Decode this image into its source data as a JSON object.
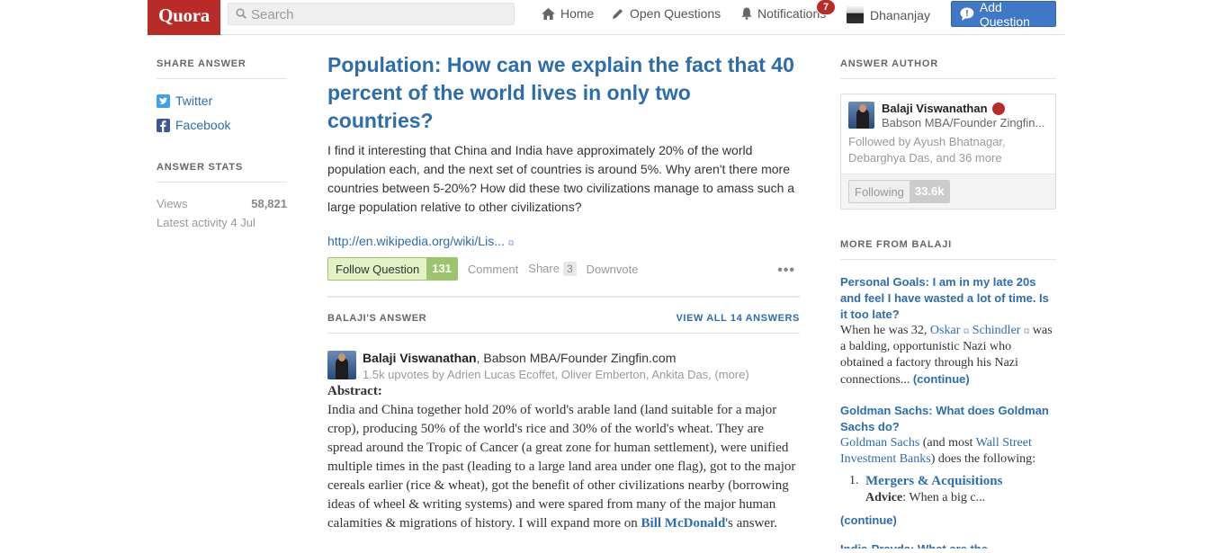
{
  "header": {
    "logo": "Quora",
    "search_placeholder": "Search",
    "nav_home": "Home",
    "nav_open_questions": "Open Questions",
    "nav_notifications": "Notifications",
    "notification_count": "7",
    "user_name": "Dhananjay",
    "add_question": "Add Question"
  },
  "left": {
    "share_heading": "Share Answer",
    "twitter": "Twitter",
    "facebook": "Facebook",
    "stats_heading": "Answer Stats",
    "views_label": "Views",
    "views_value": "58,821",
    "latest_activity": "Latest activity 4 Jul"
  },
  "question": {
    "topic": "Population",
    "title": ": How can we explain the fact that 40 percent of the world lives in only two countries?",
    "detail": "I find it interesting that China and India have approximately 20% of the world population each, and the next set of countries is around 5%. Why aren't there more countries between 5-20%? How did these two civilizations manage to amass such a large population relative to other civilizations?",
    "link": "http://en.wikipedia.org/wiki/Lis...",
    "follow_label": "Follow Question",
    "follow_count": "131",
    "comment": "Comment",
    "share": "Share",
    "share_count": "3",
    "downvote": "Downvote",
    "more": "•••"
  },
  "answer": {
    "heading": "Balaji's Answer",
    "view_all": "View All 14 Answers",
    "author_name": "Balaji Viswanathan",
    "author_cred": ", Babson MBA/Founder Zingfin.com",
    "upvotes": "1.5k upvotes by Adrien Lucas Ecoffet, Oliver Emberton, Ankita Das, (more)",
    "abstract_label": "Abstract:",
    "body": "India and China together hold 20% of world's arable land (land suitable for a major crop), producing 50% of the world's rice and 30% of the world's wheat. They are spread around the Tropic of Cancer (a great zone for human settlement), were unified multiple times in the past (leading to a large land area under one flag), got to the major cereals earlier (rice & wheat), got the benefit of other civilizations nearby (borrowing ideas of wheel & writing systems) and were spared from many of the major human calamities & migrations of history. I will expand more on ",
    "body_link": "Bill McDonald",
    "body_end": "'s answer."
  },
  "right": {
    "author_heading": "Answer Author",
    "card_name": "Balaji Viswanathan",
    "card_cred": "Babson MBA/Founder Zingfin...",
    "card_followed": "Followed by Ayush Bhatnagar, Debarghya Das, and 36 more",
    "following_label": "Following",
    "following_count": "33.6k",
    "more_heading": "More From Balaji",
    "item1_q": "Personal Goals: I am in my late 20s and feel I have wasted a lot of time. Is it too late?",
    "item1_pre": "When he was 32, ",
    "item1_l1": "Oskar",
    "item1_l2": "Schindler",
    "item1_rest": " was a balding, opportunistic Nazi who obtained a factory through his Nazi connections... ",
    "item1_cont": "(continue)",
    "item2_q": "Goldman Sachs: What does Goldman Sachs do?",
    "item2_l1": "Goldman Sachs",
    "item2_mid": " (and most ",
    "item2_l2": "Wall Street Investment Banks",
    "item2_rest": ") does the following:",
    "item2_num": "1.",
    "item2_li_link": "Mergers & Acquisitions",
    "item2_li_bold": "Advice",
    "item2_li_rest": ": When a big c...",
    "item2_cont": "(continue)",
    "item3_q": "India-Pravda: What are the..."
  },
  "colors": {
    "brand": "#b92b27",
    "link": "#2b6dad",
    "add_question": "#3e78c6",
    "follow_green": "#9cc46f"
  }
}
